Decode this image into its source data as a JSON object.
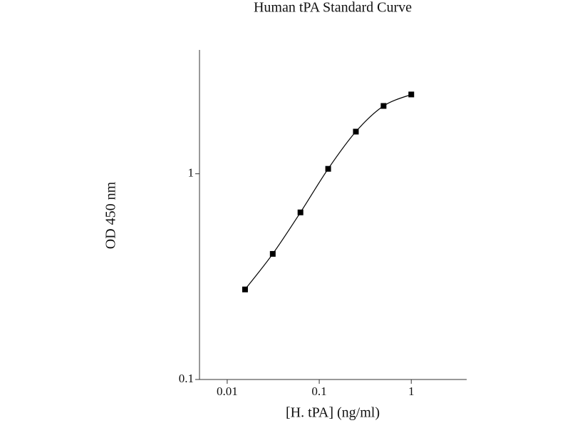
{
  "chart_data": {
    "type": "line",
    "title": "Human tPA Standard Curve",
    "x_label": "[H. tPA] (ng/ml)",
    "y_label": "OD 450 nm",
    "x": [
      0.015625,
      0.03125,
      0.0625,
      0.125,
      0.25,
      0.5,
      1
    ],
    "series": [
      {
        "color": "#000000",
        "values": [
          0.274,
          0.408,
          0.649,
          1.057,
          1.603,
          2.137,
          2.43
        ]
      }
    ],
    "xscale": "log",
    "yscale": "log",
    "xlim": [
      0.005,
      4
    ],
    "ylim": [
      0.1,
      4
    ],
    "xticks": [
      0.01,
      0.1,
      1
    ],
    "yticks": [
      0.1,
      1
    ]
  }
}
